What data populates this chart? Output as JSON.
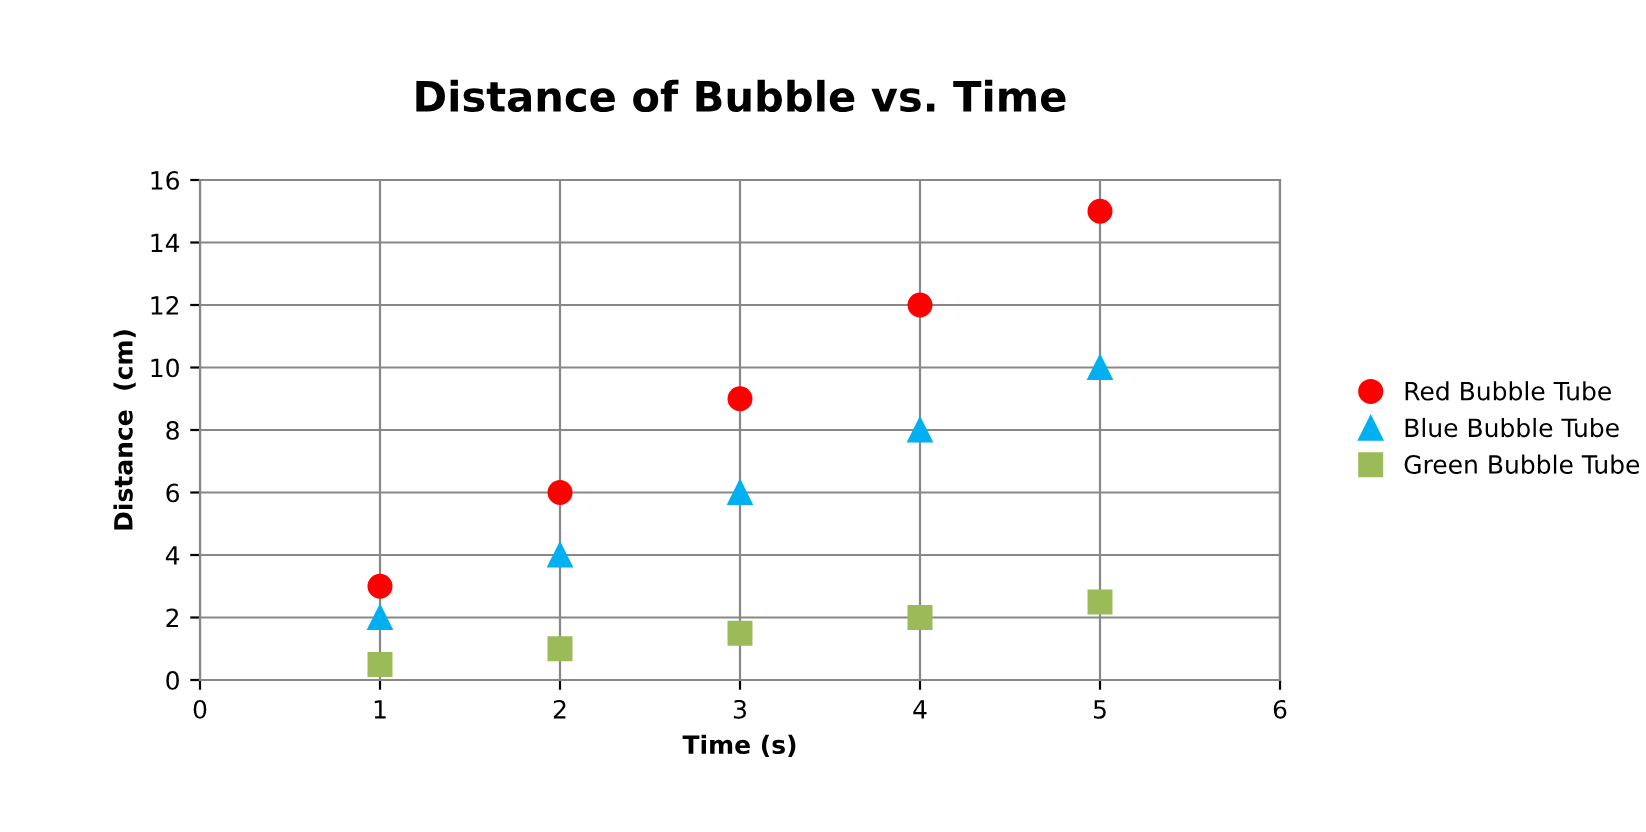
{
  "chart_data": {
    "type": "scatter",
    "title": "Distance of Bubble vs. Time",
    "xlabel": "Time (s)",
    "ylabel": "Distance  (cm)",
    "x": [
      1,
      2,
      3,
      4,
      5
    ],
    "series": [
      {
        "name": "Red Bubble Tube",
        "color": "#ff0000",
        "marker": "circle",
        "values": [
          3,
          6,
          9,
          12,
          15
        ]
      },
      {
        "name": "Blue Bubble Tube",
        "color": "#00b0f0",
        "marker": "triangle",
        "values": [
          2,
          4,
          6,
          8,
          10
        ]
      },
      {
        "name": "Green Bubble Tube",
        "color": "#9bbb59",
        "marker": "square",
        "values": [
          0.5,
          1,
          1.5,
          2,
          2.5
        ]
      }
    ],
    "xlim": [
      0,
      6
    ],
    "xticks": [
      0,
      1,
      2,
      3,
      4,
      5,
      6
    ],
    "ylim": [
      0,
      16
    ],
    "yticks": [
      0,
      2,
      4,
      6,
      8,
      10,
      12,
      14,
      16
    ],
    "grid": true,
    "legend": "right"
  }
}
